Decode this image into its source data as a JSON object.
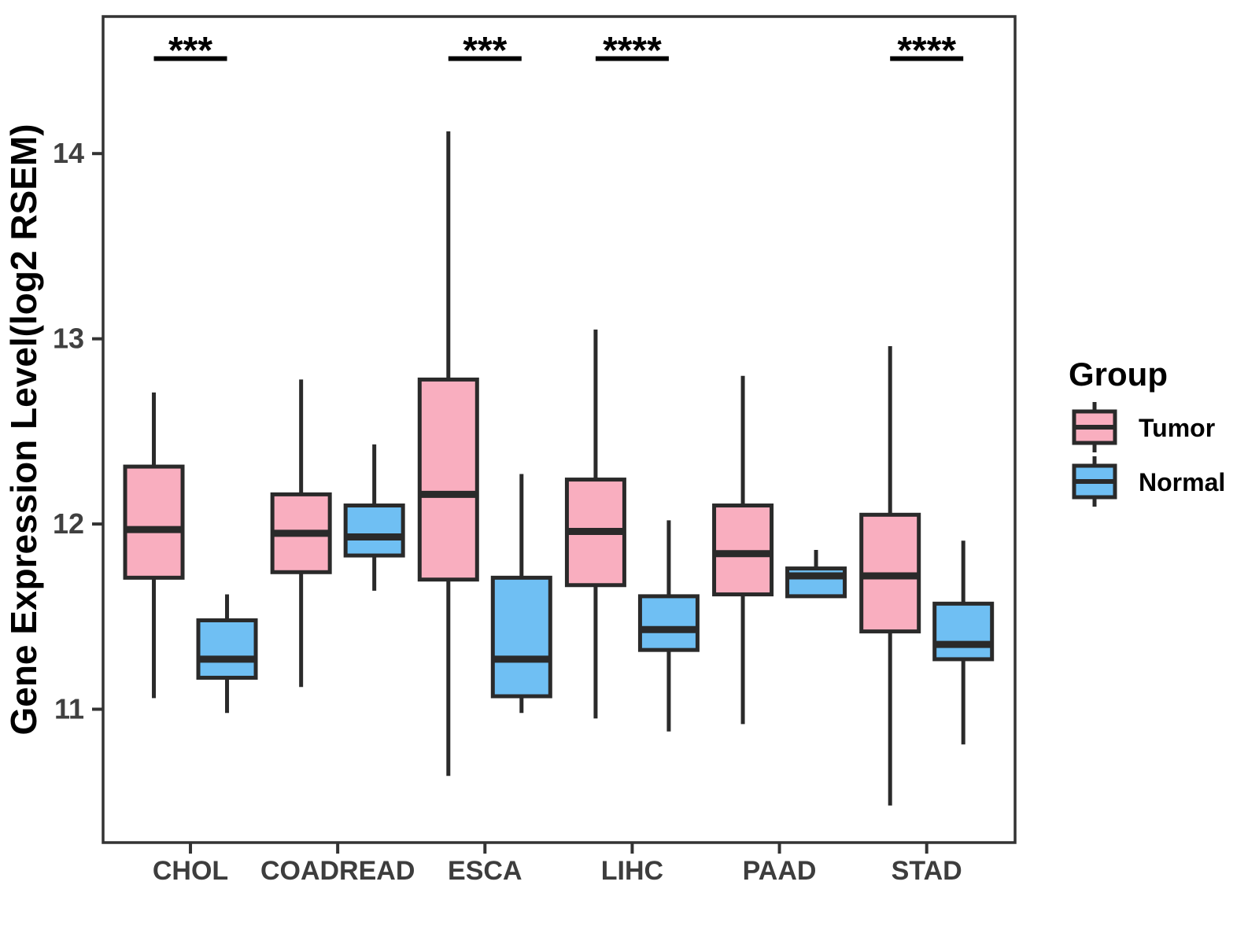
{
  "figure": {
    "background": "#ffffff",
    "y_axis_title": "Gene Expression Level(log2 RSEM)",
    "legend": {
      "title": "Group",
      "items": [
        {
          "label": "Tumor",
          "color": "#F9AEBF"
        },
        {
          "label": "Normal",
          "color": "#6FBFF3"
        }
      ]
    }
  },
  "chart_data": {
    "type": "boxplot",
    "title": "",
    "xlabel": "",
    "ylabel": "Gene Expression Level(log2 RSEM)",
    "categories": [
      "CHOL",
      "COADREAD",
      "ESCA",
      "LIHC",
      "PAAD",
      "STAD"
    ],
    "groups": [
      "Tumor",
      "Normal"
    ],
    "y_ticks": [
      11,
      12,
      13,
      14
    ],
    "ylim": [
      10.28,
      14.74
    ],
    "grid": false,
    "legend_position": "right",
    "colors": {
      "Tumor": "#F9AEBF",
      "Normal": "#6FBFF3",
      "box_stroke": "#2A2A2A",
      "panel_border": "#333333",
      "tick_label": "#404040"
    },
    "series": [
      {
        "name": "Tumor",
        "color": "#F9AEBF",
        "boxes": [
          {
            "category": "CHOL",
            "low": 11.06,
            "q1": 11.71,
            "median": 11.97,
            "q3": 12.31,
            "high": 12.71
          },
          {
            "category": "COADREAD",
            "low": 11.12,
            "q1": 11.74,
            "median": 11.95,
            "q3": 12.16,
            "high": 12.78
          },
          {
            "category": "ESCA",
            "low": 10.64,
            "q1": 11.7,
            "median": 12.16,
            "q3": 12.78,
            "high": 14.12
          },
          {
            "category": "LIHC",
            "low": 10.95,
            "q1": 11.67,
            "median": 11.96,
            "q3": 12.24,
            "high": 13.05
          },
          {
            "category": "PAAD",
            "low": 10.92,
            "q1": 11.62,
            "median": 11.84,
            "q3": 12.1,
            "high": 12.8
          },
          {
            "category": "STAD",
            "low": 10.48,
            "q1": 11.42,
            "median": 11.72,
            "q3": 12.05,
            "high": 12.96
          }
        ]
      },
      {
        "name": "Normal",
        "color": "#6FBFF3",
        "boxes": [
          {
            "category": "CHOL",
            "low": 10.98,
            "q1": 11.17,
            "median": 11.27,
            "q3": 11.48,
            "high": 11.62
          },
          {
            "category": "COADREAD",
            "low": 11.64,
            "q1": 11.83,
            "median": 11.93,
            "q3": 12.1,
            "high": 12.43
          },
          {
            "category": "ESCA",
            "low": 10.98,
            "q1": 11.07,
            "median": 11.27,
            "q3": 11.71,
            "high": 12.27
          },
          {
            "category": "LIHC",
            "low": 10.88,
            "q1": 11.32,
            "median": 11.43,
            "q3": 11.61,
            "high": 12.02
          },
          {
            "category": "PAAD",
            "low": 11.61,
            "q1": 11.61,
            "median": 11.72,
            "q3": 11.76,
            "high": 11.86
          },
          {
            "category": "STAD",
            "low": 10.81,
            "q1": 11.27,
            "median": 11.35,
            "q3": 11.57,
            "high": 11.91
          }
        ]
      }
    ],
    "significance": [
      {
        "category": "CHOL",
        "stars": "***"
      },
      {
        "category": "ESCA",
        "stars": "***"
      },
      {
        "category": "LIHC",
        "stars": "****"
      },
      {
        "category": "STAD",
        "stars": "****"
      }
    ]
  }
}
